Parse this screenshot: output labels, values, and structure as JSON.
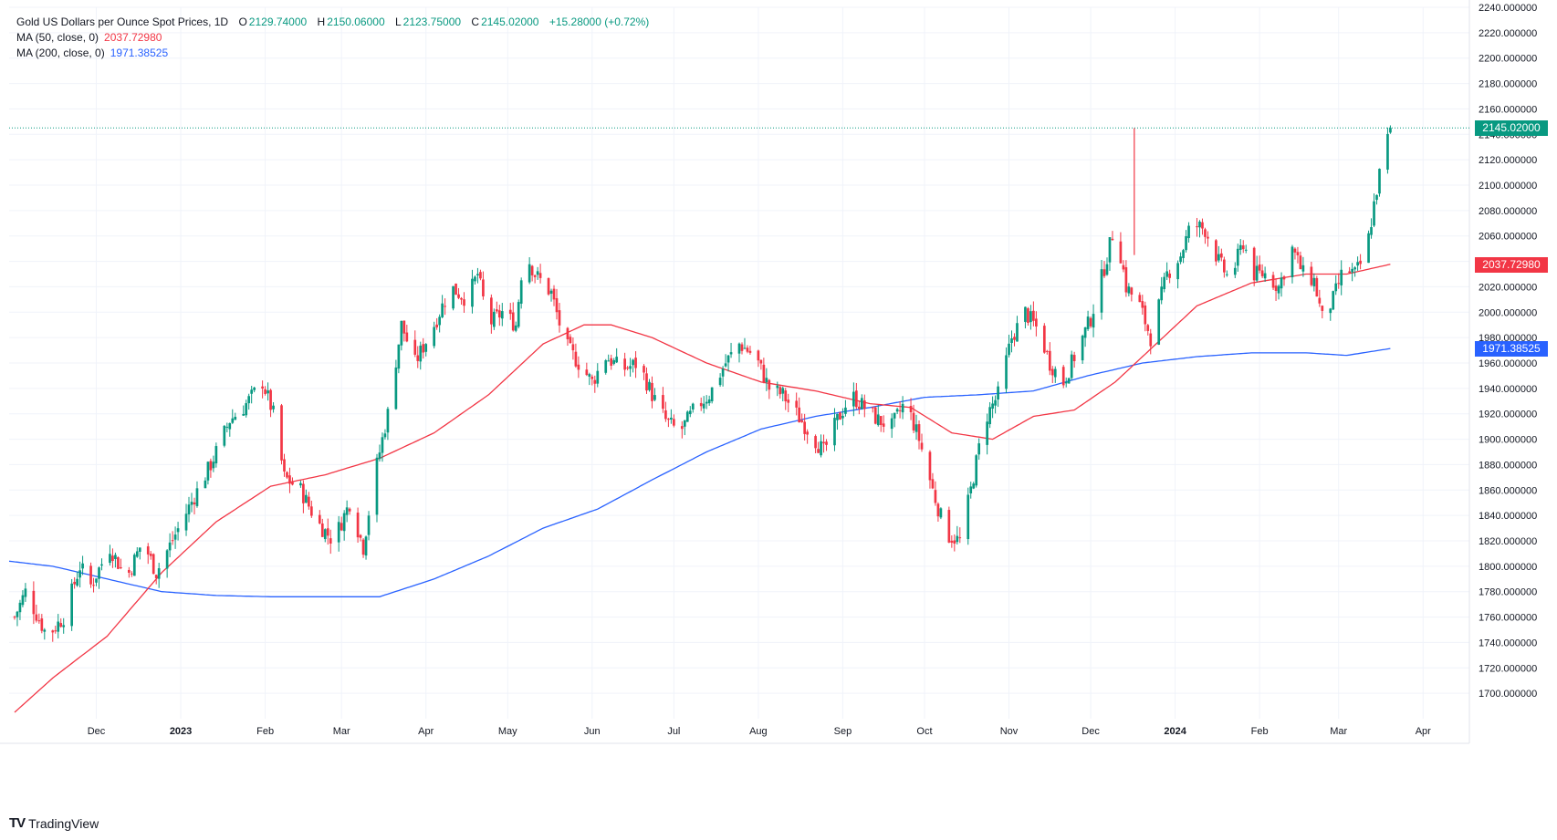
{
  "legend": {
    "title": "Gold US Dollars per Ounce Spot Prices, 1D",
    "open_label": "O",
    "open": "2129.74000",
    "high_label": "H",
    "high": "2150.06000",
    "low_label": "L",
    "low": "2123.75000",
    "close_label": "C",
    "close": "2145.02000",
    "change": "+15.28000 (+0.72%)",
    "ma50_label": "MA (50, close, 0)",
    "ma50_value": "2037.72980",
    "ma200_label": "MA (200, close, 0)",
    "ma200_value": "1971.38525"
  },
  "price_tags": {
    "last": "2145.02000",
    "ma50": "2037.72980",
    "ma200": "1971.38525"
  },
  "brand": {
    "name": "TradingView",
    "logo_text": "TV"
  },
  "colors": {
    "up": "#089981",
    "down": "#f23645",
    "ma50": "#f23645",
    "ma200": "#2962ff",
    "grid": "#f0f3fa",
    "axis_text": "#131722"
  },
  "chart_data": {
    "type": "candlestick",
    "title": "Gold US Dollars per Ounce Spot Prices, 1D",
    "ylim": [
      1680,
      2240
    ],
    "y_ticks": [
      "1700.000000",
      "1720.000000",
      "1740.000000",
      "1760.000000",
      "1780.000000",
      "1800.000000",
      "1820.000000",
      "1840.000000",
      "1860.000000",
      "1880.000000",
      "1900.000000",
      "1920.000000",
      "1940.000000",
      "1960.000000",
      "1980.000000",
      "2000.000000",
      "2020.000000",
      "2040.000000",
      "2060.000000",
      "2080.000000",
      "2100.000000",
      "2120.000000",
      "2140.000000",
      "2160.000000",
      "2180.000000",
      "2200.000000",
      "2220.000000",
      "2240.000000"
    ],
    "x_ticks": [
      {
        "label": "Dec",
        "day": 16,
        "bold": false
      },
      {
        "label": "2023",
        "day": 47,
        "bold": true
      },
      {
        "label": "Feb",
        "day": 78,
        "bold": false
      },
      {
        "label": "Mar",
        "day": 106,
        "bold": false
      },
      {
        "label": "Apr",
        "day": 137,
        "bold": false
      },
      {
        "label": "May",
        "day": 167,
        "bold": false
      },
      {
        "label": "Jun",
        "day": 198,
        "bold": false
      },
      {
        "label": "Jul",
        "day": 228,
        "bold": false
      },
      {
        "label": "Aug",
        "day": 259,
        "bold": false
      },
      {
        "label": "Sep",
        "day": 290,
        "bold": false
      },
      {
        "label": "Oct",
        "day": 320,
        "bold": false
      },
      {
        "label": "Nov",
        "day": 351,
        "bold": false
      },
      {
        "label": "Dec",
        "day": 381,
        "bold": false
      },
      {
        "label": "2024",
        "day": 412,
        "bold": true
      },
      {
        "label": "Feb",
        "day": 443,
        "bold": false
      },
      {
        "label": "Mar",
        "day": 472,
        "bold": false
      },
      {
        "label": "Apr",
        "day": 503,
        "bold": false
      }
    ],
    "start_day": -16,
    "end_day": 520,
    "last_day": 477,
    "price_anchors": [
      {
        "day": -14,
        "price": 1760
      },
      {
        "day": -10,
        "price": 1780
      },
      {
        "day": -2,
        "price": 1745
      },
      {
        "day": 4,
        "price": 1760
      },
      {
        "day": 10,
        "price": 1800
      },
      {
        "day": 14,
        "price": 1785
      },
      {
        "day": 21,
        "price": 1815
      },
      {
        "day": 27,
        "price": 1790
      },
      {
        "day": 33,
        "price": 1820
      },
      {
        "day": 38,
        "price": 1795
      },
      {
        "day": 45,
        "price": 1825
      },
      {
        "day": 52,
        "price": 1855
      },
      {
        "day": 58,
        "price": 1880
      },
      {
        "day": 65,
        "price": 1915
      },
      {
        "day": 70,
        "price": 1925
      },
      {
        "day": 77,
        "price": 1945
      },
      {
        "day": 81,
        "price": 1920
      },
      {
        "day": 85,
        "price": 1870
      },
      {
        "day": 91,
        "price": 1860
      },
      {
        "day": 97,
        "price": 1835
      },
      {
        "day": 103,
        "price": 1820
      },
      {
        "day": 109,
        "price": 1850
      },
      {
        "day": 114,
        "price": 1815
      },
      {
        "day": 118,
        "price": 1870
      },
      {
        "day": 123,
        "price": 1920
      },
      {
        "day": 128,
        "price": 1990
      },
      {
        "day": 133,
        "price": 1960
      },
      {
        "day": 140,
        "price": 1990
      },
      {
        "day": 146,
        "price": 2020
      },
      {
        "day": 152,
        "price": 2010
      },
      {
        "day": 156,
        "price": 2030
      },
      {
        "day": 160,
        "price": 1990
      },
      {
        "day": 165,
        "price": 2000
      },
      {
        "day": 170,
        "price": 1990
      },
      {
        "day": 173,
        "price": 2050
      },
      {
        "day": 177,
        "price": 2030
      },
      {
        "day": 183,
        "price": 2015
      },
      {
        "day": 188,
        "price": 1975
      },
      {
        "day": 193,
        "price": 1960
      },
      {
        "day": 198,
        "price": 1945
      },
      {
        "day": 203,
        "price": 1965
      },
      {
        "day": 209,
        "price": 1955
      },
      {
        "day": 215,
        "price": 1960
      },
      {
        "day": 220,
        "price": 1935
      },
      {
        "day": 225,
        "price": 1915
      },
      {
        "day": 230,
        "price": 1905
      },
      {
        "day": 236,
        "price": 1925
      },
      {
        "day": 241,
        "price": 1935
      },
      {
        "day": 247,
        "price": 1960
      },
      {
        "day": 252,
        "price": 1975
      },
      {
        "day": 258,
        "price": 1965
      },
      {
        "day": 263,
        "price": 1940
      },
      {
        "day": 268,
        "price": 1935
      },
      {
        "day": 273,
        "price": 1920
      },
      {
        "day": 278,
        "price": 1905
      },
      {
        "day": 283,
        "price": 1890
      },
      {
        "day": 288,
        "price": 1915
      },
      {
        "day": 293,
        "price": 1935
      },
      {
        "day": 298,
        "price": 1925
      },
      {
        "day": 303,
        "price": 1915
      },
      {
        "day": 308,
        "price": 1910
      },
      {
        "day": 313,
        "price": 1930
      },
      {
        "day": 318,
        "price": 1900
      },
      {
        "day": 323,
        "price": 1860
      },
      {
        "day": 328,
        "price": 1825
      },
      {
        "day": 333,
        "price": 1820
      },
      {
        "day": 337,
        "price": 1860
      },
      {
        "day": 342,
        "price": 1915
      },
      {
        "day": 347,
        "price": 1935
      },
      {
        "day": 352,
        "price": 1980
      },
      {
        "day": 357,
        "price": 2000
      },
      {
        "day": 362,
        "price": 1985
      },
      {
        "day": 366,
        "price": 1960
      },
      {
        "day": 371,
        "price": 1945
      },
      {
        "day": 376,
        "price": 1970
      },
      {
        "day": 381,
        "price": 1995
      },
      {
        "day": 386,
        "price": 2035
      },
      {
        "day": 390,
        "price": 2070
      },
      {
        "day": 394,
        "price": 2020
      },
      {
        "day": 399,
        "price": 2005
      },
      {
        "day": 403,
        "price": 1980
      },
      {
        "day": 409,
        "price": 2030
      },
      {
        "day": 414,
        "price": 2045
      },
      {
        "day": 418,
        "price": 2070
      },
      {
        "day": 423,
        "price": 2065
      },
      {
        "day": 428,
        "price": 2040
      },
      {
        "day": 432,
        "price": 2025
      },
      {
        "day": 437,
        "price": 2055
      },
      {
        "day": 441,
        "price": 2030
      },
      {
        "day": 445,
        "price": 2030
      },
      {
        "day": 450,
        "price": 2020
      },
      {
        "day": 455,
        "price": 2050
      },
      {
        "day": 459,
        "price": 2030
      },
      {
        "day": 463,
        "price": 2025
      },
      {
        "day": 466,
        "price": 1995
      },
      {
        "day": 470,
        "price": 2010
      },
      {
        "day": 474,
        "price": 2035
      },
      {
        "day": 478,
        "price": 2030
      },
      {
        "day": 482,
        "price": 2045
      },
      {
        "day": 485,
        "price": 2085
      },
      {
        "day": 488,
        "price": 2120
      },
      {
        "day": 491,
        "price": 2145
      }
    ],
    "ma50_anchors": [
      {
        "day": -14,
        "price": 1685
      },
      {
        "day": 0,
        "price": 1712
      },
      {
        "day": 20,
        "price": 1745
      },
      {
        "day": 40,
        "price": 1795
      },
      {
        "day": 60,
        "price": 1835
      },
      {
        "day": 80,
        "price": 1863
      },
      {
        "day": 100,
        "price": 1872
      },
      {
        "day": 120,
        "price": 1885
      },
      {
        "day": 140,
        "price": 1905
      },
      {
        "day": 160,
        "price": 1935
      },
      {
        "day": 180,
        "price": 1975
      },
      {
        "day": 195,
        "price": 1990
      },
      {
        "day": 205,
        "price": 1990
      },
      {
        "day": 220,
        "price": 1980
      },
      {
        "day": 240,
        "price": 1960
      },
      {
        "day": 260,
        "price": 1945
      },
      {
        "day": 280,
        "price": 1938
      },
      {
        "day": 300,
        "price": 1928
      },
      {
        "day": 315,
        "price": 1925
      },
      {
        "day": 330,
        "price": 1905
      },
      {
        "day": 345,
        "price": 1900
      },
      {
        "day": 360,
        "price": 1918
      },
      {
        "day": 375,
        "price": 1923
      },
      {
        "day": 390,
        "price": 1945
      },
      {
        "day": 405,
        "price": 1975
      },
      {
        "day": 420,
        "price": 2005
      },
      {
        "day": 440,
        "price": 2023
      },
      {
        "day": 460,
        "price": 2030
      },
      {
        "day": 475,
        "price": 2030
      },
      {
        "day": 491,
        "price": 2037.7298
      }
    ],
    "ma200_anchors": [
      {
        "day": -16,
        "price": 1804
      },
      {
        "day": 0,
        "price": 1800
      },
      {
        "day": 20,
        "price": 1790
      },
      {
        "day": 40,
        "price": 1780
      },
      {
        "day": 60,
        "price": 1777
      },
      {
        "day": 80,
        "price": 1776
      },
      {
        "day": 100,
        "price": 1776
      },
      {
        "day": 120,
        "price": 1776
      },
      {
        "day": 140,
        "price": 1790
      },
      {
        "day": 160,
        "price": 1808
      },
      {
        "day": 180,
        "price": 1830
      },
      {
        "day": 200,
        "price": 1845
      },
      {
        "day": 220,
        "price": 1868
      },
      {
        "day": 240,
        "price": 1890
      },
      {
        "day": 260,
        "price": 1908
      },
      {
        "day": 280,
        "price": 1918
      },
      {
        "day": 300,
        "price": 1925
      },
      {
        "day": 320,
        "price": 1933
      },
      {
        "day": 340,
        "price": 1935
      },
      {
        "day": 360,
        "price": 1938
      },
      {
        "day": 380,
        "price": 1950
      },
      {
        "day": 400,
        "price": 1960
      },
      {
        "day": 420,
        "price": 1965
      },
      {
        "day": 440,
        "price": 1968
      },
      {
        "day": 460,
        "price": 1968
      },
      {
        "day": 475,
        "price": 1966
      },
      {
        "day": 491,
        "price": 1971.38525
      }
    ],
    "spikes": [
      {
        "day": 397,
        "high": 2145,
        "low": 2045
      }
    ],
    "last_close": 2145.02,
    "ma50_last": 2037.7298,
    "ma200_last": 1971.38525
  }
}
